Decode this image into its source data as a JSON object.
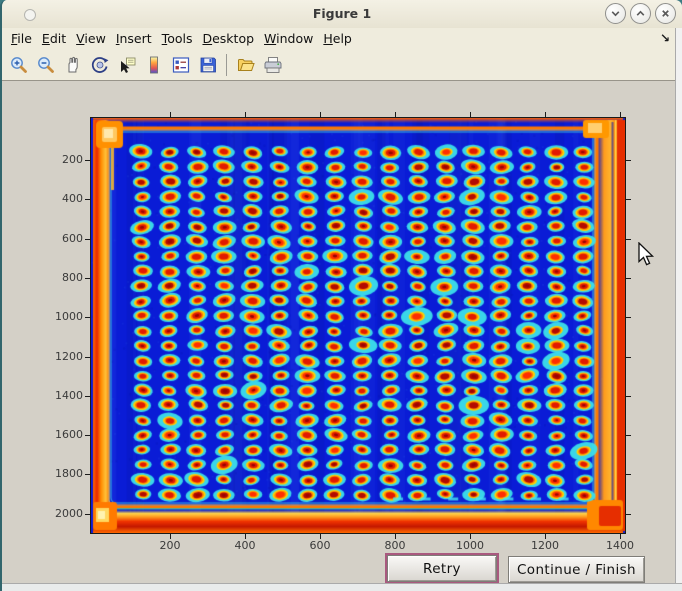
{
  "window": {
    "title": "Figure 1"
  },
  "menu": {
    "items": [
      {
        "label": "File"
      },
      {
        "label": "Edit"
      },
      {
        "label": "View"
      },
      {
        "label": "Insert"
      },
      {
        "label": "Tools"
      },
      {
        "label": "Desktop"
      },
      {
        "label": "Window"
      },
      {
        "label": "Help"
      }
    ],
    "dock_arrow": "↘"
  },
  "toolbar": {
    "icons": [
      "zoom-in",
      "zoom-out",
      "pan",
      "rotate-3d",
      "data-cursor",
      "insert-colorbar",
      "insert-legend",
      "save-figure",
      "open-file",
      "print-figure"
    ]
  },
  "figure": {
    "xticks": [
      200,
      400,
      600,
      800,
      1000,
      1200,
      1400
    ],
    "yticks": [
      200,
      400,
      600,
      800,
      1000,
      1200,
      1400,
      1600,
      1800,
      2000
    ],
    "axes": {
      "x_range": [
        0,
        1415
      ],
      "y_range": [
        0,
        2100
      ]
    },
    "image": {
      "type": "heatmap-image",
      "description": "thermal image of spotted plate, jet colormap",
      "grid_rows": 24,
      "grid_cols": 17,
      "colors": {
        "plate_bg": "#0a1cd6",
        "halo": "#3ce0ea",
        "ring_yellow": "#ffd300",
        "ring_orange": "#ff7e00",
        "spot_red": "#e11a00",
        "spot_dark": "#9a0500",
        "frame_orange": "#ff7800",
        "edge_red": "#e62e00",
        "edge_orange": "#ff9000",
        "hot_yellow": "#ffd860"
      }
    }
  },
  "buttons": {
    "retry": "Retry",
    "continue_finish": "Continue / Finish"
  }
}
